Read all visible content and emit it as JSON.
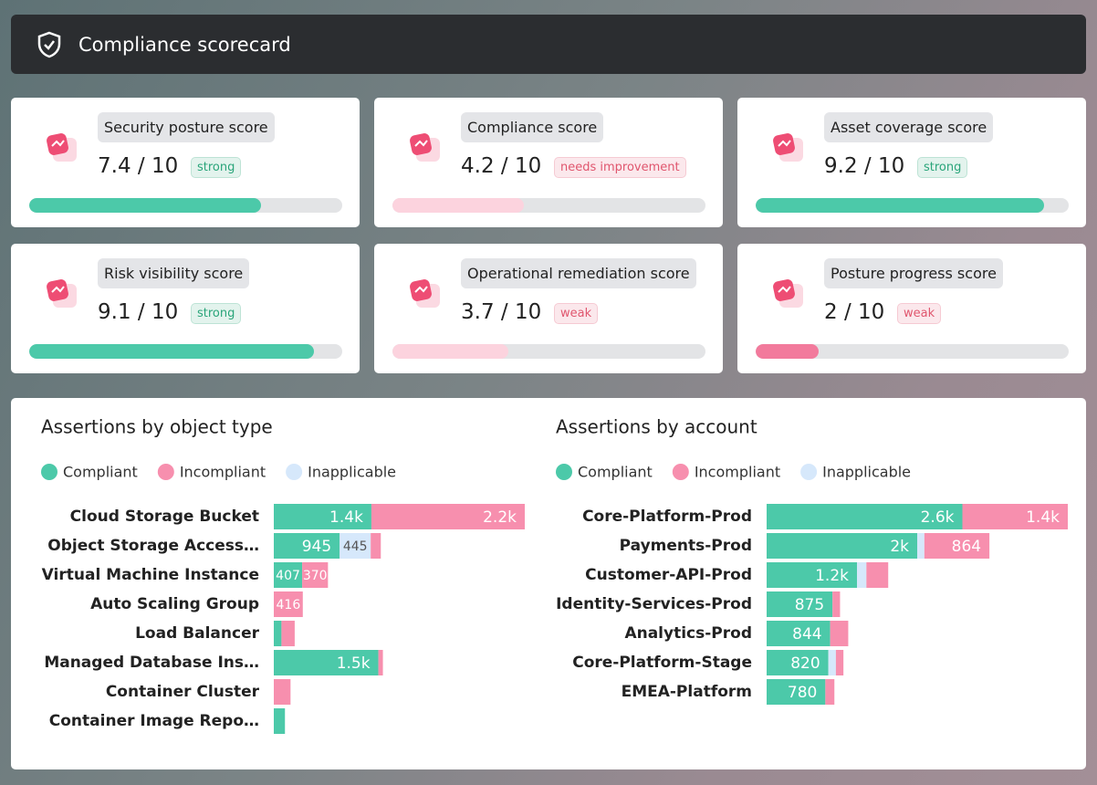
{
  "header": {
    "title": "Compliance scorecard"
  },
  "cards": [
    {
      "title": "Security posture score",
      "score": 7.4,
      "max": 10,
      "badge": "strong",
      "color": "#4cc9a9",
      "badge_color": "#2aa57a"
    },
    {
      "title": "Compliance score",
      "score": 4.2,
      "max": 10,
      "badge": "needs improvement",
      "color": "#fcd3de",
      "badge_color": "#e0566e"
    },
    {
      "title": "Asset coverage score",
      "score": 9.2,
      "max": 10,
      "badge": "strong",
      "color": "#4cc9a9",
      "badge_color": "#2aa57a"
    },
    {
      "title": "Risk visibility score",
      "score": 9.1,
      "max": 10,
      "badge": "strong",
      "color": "#4cc9a9",
      "badge_color": "#2aa57a"
    },
    {
      "title": "Operational remediation score",
      "score": 3.7,
      "max": 10,
      "badge": "weak",
      "color": "#fcd3de",
      "badge_color": "#e0566e"
    },
    {
      "title": "Posture progress score",
      "score": 2,
      "max": 10,
      "badge": "weak",
      "color": "#f27a9c",
      "badge_color": "#e0566e"
    }
  ],
  "chart_data": [
    {
      "type": "bar",
      "orientation": "horizontal",
      "stacked": true,
      "title": "Assertions by object type",
      "categories": [
        "Cloud Storage Bucket",
        "Object Storage Access…",
        "Virtual Machine Instance",
        "Auto Scaling Group",
        "Load Balancer",
        "Managed Database Ins…",
        "Container Cluster",
        "Container Image Repo…"
      ],
      "series": [
        {
          "name": "Compliant",
          "color": "#4cc9a9",
          "values": [
            1400,
            945,
            407,
            0,
            110,
            1500,
            0,
            160
          ],
          "value_labels": [
            "1.4k",
            "945",
            "407",
            null,
            null,
            "1.5k",
            null,
            null
          ]
        },
        {
          "name": "Incompliant",
          "color": "#f78fae",
          "values": [
            2200,
            145,
            370,
            416,
            190,
            65,
            240,
            0
          ],
          "value_labels": [
            "2.2k",
            null,
            "370",
            "416",
            null,
            null,
            null,
            null
          ]
        },
        {
          "name": "Inapplicable",
          "color": "#d6e8fb",
          "values": [
            0,
            445,
            0,
            0,
            0,
            0,
            0,
            0
          ],
          "value_labels": [
            null,
            "445",
            null,
            null,
            null,
            null,
            null,
            null
          ]
        }
      ]
    },
    {
      "type": "bar",
      "orientation": "horizontal",
      "stacked": true,
      "title": "Assertions by account",
      "categories": [
        "Core-Platform-Prod",
        "Payments-Prod",
        "Customer-API-Prod",
        "Identity-Services-Prod",
        "Analytics-Prod",
        "Core-Platform-Stage",
        "EMEA-Platform"
      ],
      "series": [
        {
          "name": "Compliant",
          "color": "#4cc9a9",
          "values": [
            2600,
            2000,
            1200,
            875,
            844,
            820,
            780
          ],
          "value_labels": [
            "2.6k",
            "2k",
            "1.2k",
            "875",
            "844",
            "820",
            "780"
          ]
        },
        {
          "name": "Incompliant",
          "color": "#f78fae",
          "values": [
            1400,
            864,
            290,
            100,
            240,
            100,
            120
          ],
          "value_labels": [
            "1.4k",
            "864",
            null,
            null,
            null,
            null,
            null
          ]
        },
        {
          "name": "Inapplicable",
          "color": "#d6e8fb",
          "values": [
            0,
            95,
            125,
            0,
            0,
            100,
            0
          ],
          "value_labels": [
            null,
            null,
            null,
            null,
            null,
            null,
            null
          ]
        }
      ]
    }
  ]
}
